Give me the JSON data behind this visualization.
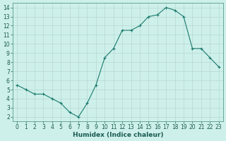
{
  "x": [
    0,
    1,
    2,
    3,
    4,
    5,
    6,
    7,
    8,
    9,
    10,
    11,
    12,
    13,
    14,
    15,
    16,
    17,
    18,
    19,
    20,
    21,
    22,
    23
  ],
  "y": [
    5.5,
    5.0,
    4.5,
    4.5,
    4.0,
    3.5,
    2.5,
    2.0,
    3.5,
    5.5,
    8.5,
    9.5,
    11.5,
    11.5,
    12.0,
    13.0,
    13.2,
    14.0,
    13.7,
    13.0,
    9.5,
    9.5,
    8.5,
    7.5
  ],
  "xlabel": "Humidex (Indice chaleur)",
  "line_color": "#1a7a6e",
  "marker": "+",
  "bg_color": "#cef0ea",
  "grid_color": "#b8d8d2",
  "xlim": [
    -0.5,
    23.5
  ],
  "ylim": [
    1.5,
    14.5
  ],
  "xticks": [
    0,
    1,
    2,
    3,
    4,
    5,
    6,
    7,
    8,
    9,
    10,
    11,
    12,
    13,
    14,
    15,
    16,
    17,
    18,
    19,
    20,
    21,
    22,
    23
  ],
  "yticks": [
    2,
    3,
    4,
    5,
    6,
    7,
    8,
    9,
    10,
    11,
    12,
    13,
    14
  ],
  "tick_fontsize": 5.5,
  "xlabel_fontsize": 6.5,
  "spine_color": "#5a9a8a"
}
